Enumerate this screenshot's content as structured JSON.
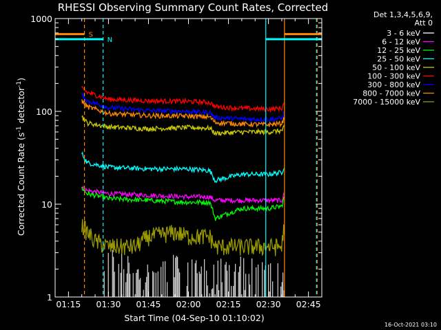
{
  "chart_data": {
    "type": "line",
    "title": "RHESSI Observing Summary Count Rates, Corrected",
    "xlabel": "Start Time (04-Sep-10 01:10:02)",
    "ylabel_main": "Corrected Count Rate (s",
    "ylabel_sup1": "-1",
    "ylabel_mid": " detector",
    "ylabel_sup2": "-1",
    "ylabel_end": ")",
    "timestamp": "16-Oct-2021 03:10",
    "y_scale": "log",
    "xlim": [
      "01:10",
      "02:50"
    ],
    "ylim": [
      1,
      1000
    ],
    "x_ticks": [
      "01:15",
      "01:30",
      "01:45",
      "02:00",
      "02:15",
      "02:30",
      "02:45"
    ],
    "y_ticks": [
      "1",
      "10",
      "100",
      "1000"
    ],
    "legend_header": [
      "Det 1,3,4,5,6,9,",
      "Att 0"
    ],
    "legend_placement": "right",
    "flags": [
      {
        "label": "S",
        "color": "#ff8800",
        "y": 680,
        "intervals": [
          [
            "01:10",
            "01:21"
          ],
          [
            "02:36",
            "02:50"
          ]
        ]
      },
      {
        "label": "N",
        "color": "#00ffff",
        "y": 600,
        "intervals": [
          [
            "01:10",
            "01:28"
          ],
          [
            "02:29",
            "02:50"
          ]
        ]
      }
    ],
    "vertical_lines": [
      {
        "x": "01:21",
        "color": "#ff8800",
        "style": "dashed"
      },
      {
        "x": "01:28",
        "color": "#00ffff",
        "style": "dashed"
      },
      {
        "x": "02:29",
        "color": "#00ffff",
        "style": "solid"
      },
      {
        "x": "02:36",
        "color": "#ff8800",
        "style": "solid"
      },
      {
        "x": "02:48",
        "color": "#00ffff",
        "style": "dashed"
      },
      {
        "x": "02:48",
        "color": "#ff8800",
        "style": "dashed"
      }
    ],
    "series": [
      {
        "name": "3 - 6 keV",
        "color": "#ffffff",
        "x": [
          "01:28",
          "01:31",
          "01:40",
          "01:50",
          "02:00",
          "02:10",
          "02:20",
          "02:30",
          "02:36"
        ],
        "values": [
          1.5,
          2.5,
          1.6,
          1.8,
          2.2,
          1.7,
          1.9,
          1.6,
          1.8
        ]
      },
      {
        "name": "6 - 12 keV",
        "color": "#ff00ff",
        "x": [
          "01:20",
          "01:22",
          "01:30",
          "01:45",
          "02:00",
          "02:08",
          "02:10",
          "02:20",
          "02:30",
          "02:35",
          "02:36"
        ],
        "values": [
          15,
          14,
          13,
          12.5,
          12,
          12,
          11,
          11,
          11,
          11,
          13
        ]
      },
      {
        "name": "12 - 25 keV",
        "color": "#00ff00",
        "x": [
          "01:20",
          "01:22",
          "01:30",
          "01:45",
          "02:00",
          "02:08",
          "02:10",
          "02:20",
          "02:30",
          "02:35",
          "02:36"
        ],
        "values": [
          15,
          13,
          11.5,
          11,
          10.5,
          10.5,
          7,
          9,
          9,
          9.5,
          12
        ]
      },
      {
        "name": "25 - 50 keV",
        "color": "#00ffff",
        "x": [
          "01:20",
          "01:22",
          "01:30",
          "01:45",
          "02:00",
          "02:08",
          "02:10",
          "02:20",
          "02:30",
          "02:35",
          "02:36"
        ],
        "values": [
          35,
          28,
          25,
          24,
          24,
          23,
          18,
          21,
          21,
          22,
          26
        ]
      },
      {
        "name": "50 - 100 keV",
        "color": "#cccc00",
        "x": [
          "01:20",
          "01:22",
          "01:30",
          "01:45",
          "02:00",
          "02:08",
          "02:10",
          "02:20",
          "02:30",
          "02:35",
          "02:36"
        ],
        "values": [
          88,
          75,
          68,
          65,
          67,
          66,
          58,
          60,
          60,
          62,
          68
        ]
      },
      {
        "name": "100 - 300 keV",
        "color": "#ff0000",
        "x": [
          "01:20",
          "01:22",
          "01:30",
          "01:45",
          "02:00",
          "02:08",
          "02:10",
          "02:20",
          "02:30",
          "02:35",
          "02:36"
        ],
        "values": [
          180,
          160,
          135,
          130,
          128,
          125,
          112,
          108,
          106,
          108,
          125
        ]
      },
      {
        "name": "300 - 800 keV",
        "color": "#0000ff",
        "x": [
          "01:20",
          "01:22",
          "01:30",
          "01:45",
          "02:00",
          "02:08",
          "02:10",
          "02:20",
          "02:30",
          "02:35",
          "02:36"
        ],
        "values": [
          150,
          130,
          110,
          102,
          100,
          97,
          86,
          83,
          82,
          84,
          98
        ]
      },
      {
        "name": "800 - 7000 keV",
        "color": "#ff8800",
        "x": [
          "01:20",
          "01:22",
          "01:30",
          "01:45",
          "02:00",
          "02:08",
          "02:10",
          "02:20",
          "02:30",
          "02:35",
          "02:36"
        ],
        "values": [
          130,
          112,
          95,
          90,
          89,
          87,
          76,
          73,
          72,
          74,
          85
        ]
      },
      {
        "name": "7000 - 15000 keV",
        "color": "#999900",
        "x": [
          "01:20",
          "01:22",
          "01:25",
          "01:30",
          "01:40",
          "01:45",
          "01:55",
          "02:00",
          "02:08",
          "02:10",
          "02:20",
          "02:30",
          "02:35",
          "02:36"
        ],
        "values": [
          6,
          5,
          4,
          3.5,
          3.5,
          4.5,
          5,
          4.5,
          4.5,
          3.5,
          3.5,
          3.5,
          3.5,
          6
        ]
      }
    ]
  }
}
